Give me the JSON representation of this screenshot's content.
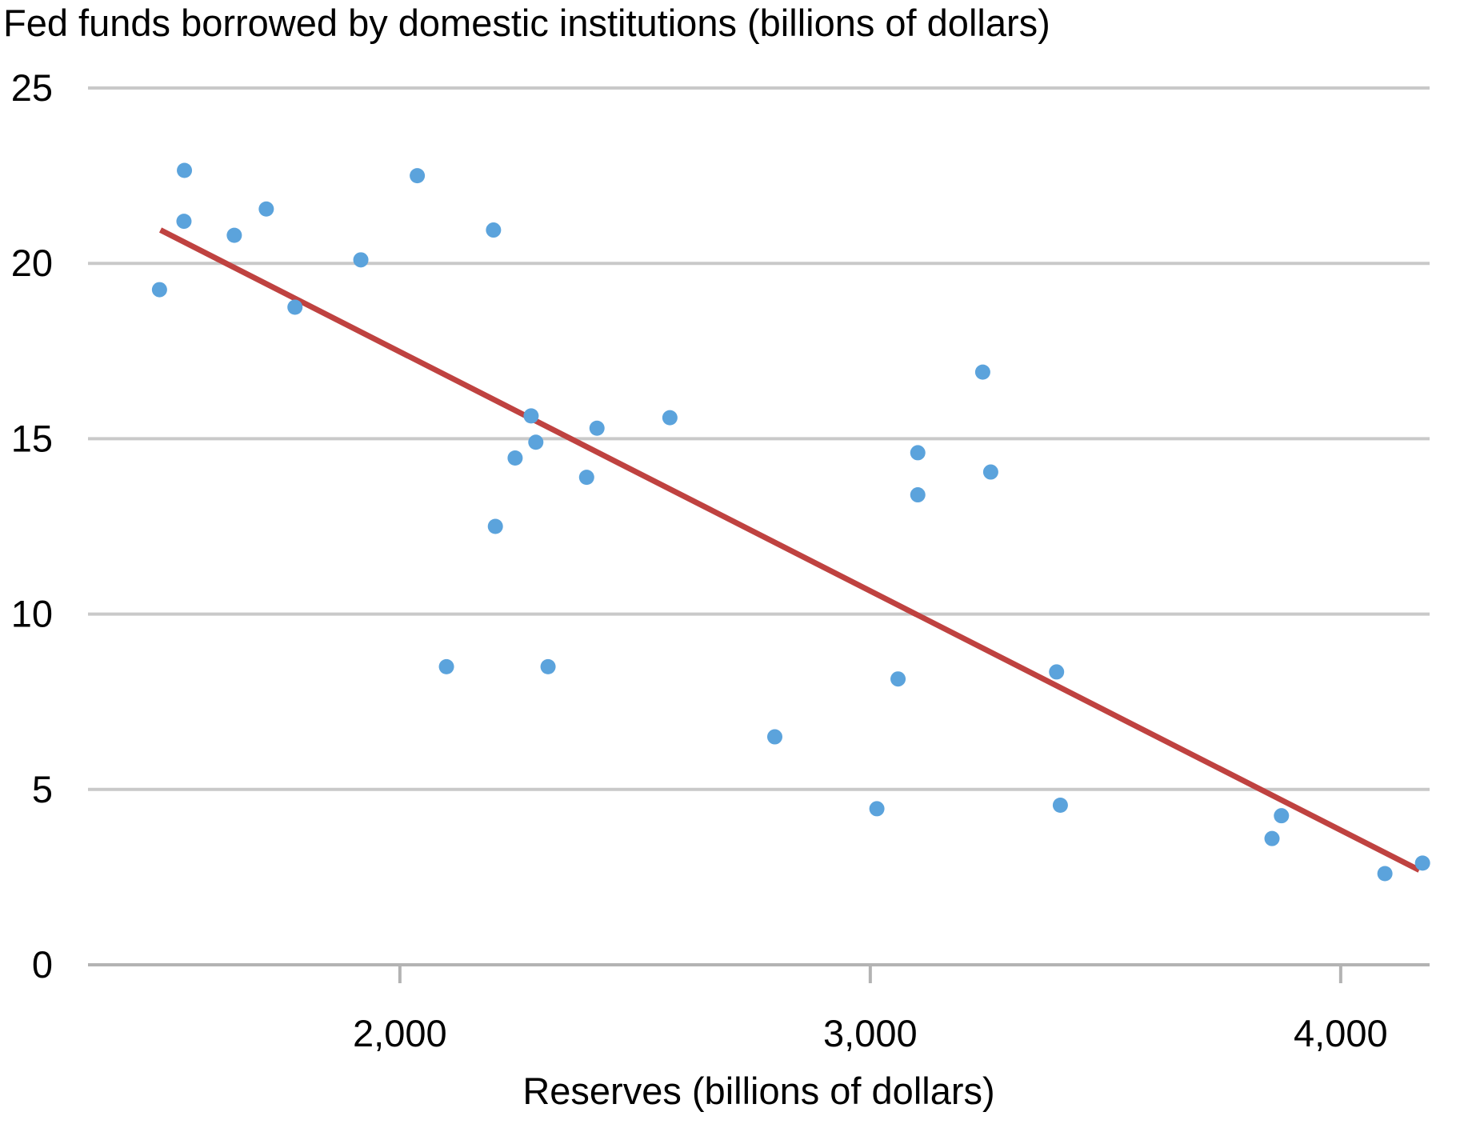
{
  "page": {
    "background": "#ffffff"
  },
  "chart_data": {
    "type": "scatter",
    "title": "Fed funds borrowed by domestic institutions (billions of dollars)",
    "xlabel": "Reserves (billions of dollars)",
    "ylabel": "",
    "xlim": [
      1337,
      4189
    ],
    "ylim": [
      0,
      25
    ],
    "grid": "horizontal-only",
    "legend": "none",
    "gridline_color": "#c9c9c9",
    "axis_color": "#b3b3b3",
    "text_color": "#000000",
    "tick_font_size": 47,
    "x_ticks": [
      {
        "value": 2000,
        "label": "2,000"
      },
      {
        "value": 3000,
        "label": "3,000"
      },
      {
        "value": 4000,
        "label": "4,000"
      }
    ],
    "y_ticks": [
      {
        "value": 0,
        "label": "0"
      },
      {
        "value": 5,
        "label": "5"
      },
      {
        "value": 10,
        "label": "10"
      },
      {
        "value": 15,
        "label": "15"
      },
      {
        "value": 20,
        "label": "20"
      },
      {
        "value": 25,
        "label": "25"
      }
    ],
    "series": [
      {
        "name": "fed-funds-observations",
        "type": "scatter",
        "color": "#5ba3dc",
        "marker_radius": 9.5,
        "points": [
          [
            1489,
            19.25
          ],
          [
            1541,
            21.2
          ],
          [
            1542,
            22.65
          ],
          [
            1648,
            20.8
          ],
          [
            1716,
            21.55
          ],
          [
            1777,
            18.75
          ],
          [
            1917,
            20.1
          ],
          [
            2037,
            22.5
          ],
          [
            2099,
            8.5
          ],
          [
            2199,
            20.95
          ],
          [
            2203,
            12.5
          ],
          [
            2245,
            14.45
          ],
          [
            2279,
            15.65
          ],
          [
            2289,
            14.9
          ],
          [
            2315,
            8.5
          ],
          [
            2397,
            13.9
          ],
          [
            2419,
            15.3
          ],
          [
            2574,
            15.6
          ],
          [
            2797,
            6.5
          ],
          [
            3014,
            4.45
          ],
          [
            3059,
            8.15
          ],
          [
            3101,
            13.4
          ],
          [
            3101,
            14.6
          ],
          [
            3239,
            16.9
          ],
          [
            3256,
            14.05
          ],
          [
            3396,
            8.35
          ],
          [
            3404,
            4.55
          ],
          [
            3854,
            3.6
          ],
          [
            3874,
            4.25
          ],
          [
            4094,
            2.6
          ],
          [
            4174,
            2.9
          ]
        ]
      },
      {
        "name": "linear-trend",
        "type": "line",
        "color": "#bf4240",
        "stroke_width": 7,
        "points": [
          [
            1491,
            20.95
          ],
          [
            4167,
            2.7
          ]
        ]
      }
    ]
  }
}
